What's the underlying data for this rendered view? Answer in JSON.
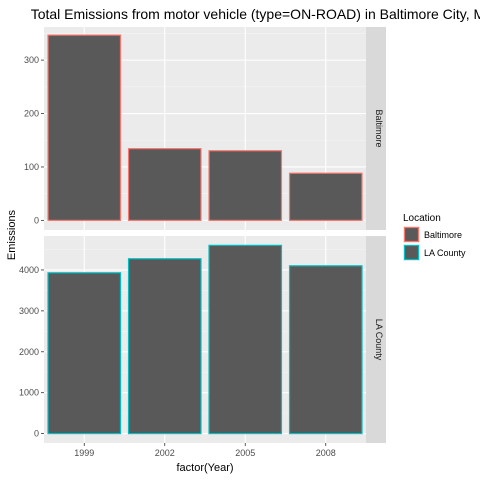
{
  "chart_data": {
    "type": "bar",
    "title": "Total Emissions from motor vehicle (type=ON-ROAD) in Baltimore City, MD",
    "xlabel": "factor(Year)",
    "ylabel": "Emissions",
    "categories": [
      "1999",
      "2002",
      "2005",
      "2008"
    ],
    "fill_color": "#595959",
    "panel_background": "#ebebeb",
    "strip_background": "#d9d9d9",
    "grid": true,
    "legend": {
      "title": "Location",
      "placement": "right",
      "entries": [
        {
          "label": "Baltimore",
          "color": "#F8766D"
        },
        {
          "label": "LA County",
          "color": "#00BFC4"
        }
      ]
    },
    "facets": [
      {
        "strip": "Baltimore",
        "color": "#F8766D",
        "values": [
          346.8,
          134.3,
          130.4,
          88.3
        ],
        "ylim": [
          -18,
          362
        ],
        "yticks": [
          0,
          100,
          200,
          300
        ]
      },
      {
        "strip": "LA County",
        "color": "#00BFC4",
        "values": [
          3931.1,
          4274.0,
          4601.4,
          4101.3
        ],
        "ylim": [
          -230,
          4830
        ],
        "yticks": [
          0,
          1000,
          2000,
          3000,
          4000
        ]
      }
    ]
  }
}
